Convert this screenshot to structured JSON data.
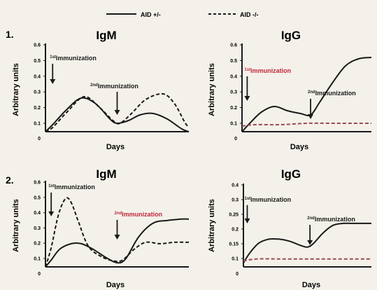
{
  "colors": {
    "background": "#f4f1ea",
    "ink": "#1a1a1a",
    "red_text": "#c0283a",
    "aid_null_line": "#9a4a52"
  },
  "legend": [
    {
      "label": "AID +/-",
      "style": "solid"
    },
    {
      "label": "AID -/-",
      "style": "dashed"
    }
  ],
  "chart_data": [
    {
      "type": "line",
      "panel": "1.",
      "title": "IgM",
      "xlabel": "Days",
      "ylabel": "Arbitrary units",
      "x_origin_label": "0",
      "ylim": [
        0,
        0.6
      ],
      "yticks": [
        "0.6",
        "0.5",
        "0.4",
        "0.3",
        "0.2",
        "0.1"
      ],
      "annotations": [
        {
          "sup": "1st",
          "text": "Immunization",
          "color": "ink",
          "x": 0.05,
          "label_y": 0.51,
          "arrow_to": 0.34,
          "anchor": "start"
        },
        {
          "sup": "2nd",
          "text": "Immunization",
          "color": "ink",
          "x": 0.5,
          "label_y": 0.31,
          "arrow_to": 0.12,
          "anchor": "middle"
        }
      ],
      "series": [
        {
          "legend": 0,
          "x": [
            0,
            0.05,
            0.15,
            0.25,
            0.35,
            0.45,
            0.5,
            0.58,
            0.66,
            0.75,
            0.85,
            0.95,
            1
          ],
          "y": [
            0,
            0.05,
            0.16,
            0.24,
            0.2,
            0.09,
            0.06,
            0.08,
            0.12,
            0.13,
            0.09,
            0.02,
            0
          ]
        },
        {
          "legend": 1,
          "x": [
            0,
            0.05,
            0.15,
            0.27,
            0.38,
            0.47,
            0.52,
            0.6,
            0.7,
            0.82,
            0.9,
            0.97,
            1
          ],
          "y": [
            0,
            0.03,
            0.14,
            0.25,
            0.17,
            0.08,
            0.06,
            0.13,
            0.23,
            0.27,
            0.2,
            0.07,
            0.03
          ]
        }
      ]
    },
    {
      "type": "line",
      "panel": "",
      "title": "IgG",
      "xlabel": "Days",
      "ylabel": "Arbitrary units",
      "x_origin_label": "0",
      "ylim": [
        0,
        0.6
      ],
      "yticks": [
        "0.6",
        "0.5",
        "0.4",
        "0.3",
        "0.2",
        "0.1"
      ],
      "annotations": [
        {
          "sup": "1st",
          "text": "Immunization",
          "color": "red_text",
          "x": 0.04,
          "label_y": 0.42,
          "arrow_to": 0.22,
          "anchor": "start"
        },
        {
          "sup": "2nd",
          "text": "Immunization",
          "color": "ink",
          "x": 0.53,
          "label_y": 0.26,
          "arrow_to": 0.09,
          "anchor": "start"
        }
      ],
      "series": [
        {
          "legend": 0,
          "x": [
            0,
            0.06,
            0.15,
            0.25,
            0.35,
            0.45,
            0.53,
            0.6,
            0.7,
            0.8,
            0.9,
            1
          ],
          "y": [
            0,
            0.06,
            0.14,
            0.18,
            0.15,
            0.13,
            0.12,
            0.21,
            0.35,
            0.47,
            0.52,
            0.53
          ]
        },
        {
          "legend": 1,
          "x": [
            0,
            0.1,
            0.3,
            0.5,
            0.7,
            0.9,
            1
          ],
          "y": [
            0.04,
            0.05,
            0.05,
            0.06,
            0.06,
            0.06,
            0.06
          ]
        }
      ]
    },
    {
      "type": "line",
      "panel": "2.",
      "title": "IgM",
      "xlabel": "Days",
      "ylabel": "Arbitrary units",
      "x_origin_label": "0",
      "ylim": [
        0,
        0.6
      ],
      "yticks": [
        "0.6",
        "0.5",
        "0.4",
        "0.3",
        "0.2",
        "0.1"
      ],
      "annotations": [
        {
          "sup": "1st",
          "text": "Immunization",
          "color": "ink",
          "x": 0.04,
          "label_y": 0.57,
          "arrow_to": 0.37,
          "anchor": "start"
        },
        {
          "sup": "2nd",
          "text": "Immunization",
          "color": "red_text",
          "x": 0.5,
          "label_y": 0.37,
          "arrow_to": 0.2,
          "anchor": "start"
        }
      ],
      "series": [
        {
          "legend": 0,
          "x": [
            0,
            0.04,
            0.1,
            0.18,
            0.25,
            0.33,
            0.42,
            0.5,
            0.56,
            0.65,
            0.75,
            0.85,
            0.95,
            1
          ],
          "y": [
            0,
            0.05,
            0.13,
            0.17,
            0.17,
            0.13,
            0.07,
            0.03,
            0.06,
            0.22,
            0.32,
            0.34,
            0.35,
            0.35
          ]
        },
        {
          "legend": 1,
          "x": [
            0,
            0.04,
            0.09,
            0.14,
            0.18,
            0.23,
            0.3,
            0.4,
            0.5,
            0.55,
            0.62,
            0.7,
            0.8,
            0.9,
            1
          ],
          "y": [
            0,
            0.14,
            0.38,
            0.5,
            0.47,
            0.33,
            0.15,
            0.07,
            0.04,
            0.06,
            0.13,
            0.18,
            0.17,
            0.18,
            0.18
          ]
        }
      ]
    },
    {
      "type": "line",
      "panel": "",
      "title": "IgG",
      "xlabel": "Days",
      "ylabel": "Arbitrary units",
      "x_origin_label": "0",
      "ylim": [
        0,
        0.4
      ],
      "yticks": [
        "0.4",
        "0.3",
        "0.25",
        "0.2",
        "0.15",
        "0.1"
      ],
      "annotations": [
        {
          "sup": "1st",
          "text": "Immunization",
          "color": "ink",
          "x": 0.03,
          "label_y": 0.33,
          "arrow_to": 0.22,
          "anchor": "start"
        },
        {
          "sup": "2nd",
          "text": "Immunization",
          "color": "ink",
          "x": 0.52,
          "label_y": 0.23,
          "arrow_to": 0.11,
          "anchor": "start"
        }
      ],
      "series": [
        {
          "legend": 0,
          "x": [
            0,
            0.05,
            0.12,
            0.2,
            0.28,
            0.36,
            0.44,
            0.5,
            0.55,
            0.62,
            0.7,
            0.78,
            0.85,
            1
          ],
          "y": [
            0.02,
            0.07,
            0.12,
            0.14,
            0.14,
            0.13,
            0.11,
            0.1,
            0.12,
            0.17,
            0.21,
            0.22,
            0.22,
            0.22
          ]
        },
        {
          "legend": 1,
          "x": [
            0,
            0.1,
            0.3,
            0.5,
            0.7,
            0.9,
            1
          ],
          "y": [
            0.03,
            0.04,
            0.04,
            0.04,
            0.04,
            0.04,
            0.04
          ]
        }
      ]
    }
  ]
}
